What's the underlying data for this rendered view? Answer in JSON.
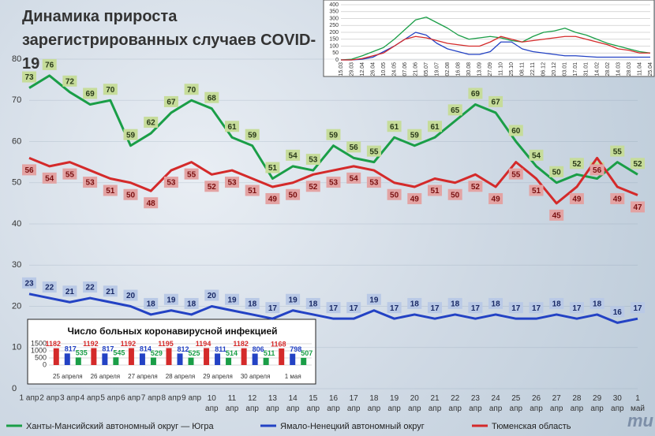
{
  "chart_data": [
    {
      "type": "line",
      "title": "Динамика прироста зарегистрированных случаев COVID-19",
      "categories": [
        "1 апр",
        "2 апр",
        "3 апр",
        "4 апр",
        "5 апр",
        "6 апр",
        "7 апр",
        "8 апр",
        "9 апр",
        "10 апр",
        "11 апр",
        "12 апр",
        "13 апр",
        "14 апр",
        "15 апр",
        "16 апр",
        "17 апр",
        "18 апр",
        "19 апр",
        "20 апр",
        "21 апр",
        "22 апр",
        "23 апр",
        "24 апр",
        "25 апр",
        "26 апр",
        "27 апр",
        "28 апр",
        "29 апр",
        "30 апр",
        "1 май"
      ],
      "series": [
        {
          "name": "Ханты-Мансийский автономный округ — Югра",
          "color": "#1a9e47",
          "values": [
            73,
            76,
            72,
            69,
            70,
            59,
            62,
            67,
            70,
            68,
            61,
            59,
            51,
            54,
            53,
            59,
            56,
            55,
            61,
            59,
            61,
            65,
            69,
            67,
            60,
            54,
            50,
            52,
            51,
            55,
            52
          ]
        },
        {
          "name": "Ямало-Ненецкий автономный округ",
          "color": "#2342c4",
          "values": [
            23,
            22,
            21,
            22,
            21,
            20,
            18,
            19,
            18,
            20,
            19,
            18,
            17,
            19,
            18,
            17,
            17,
            19,
            17,
            18,
            17,
            18,
            17,
            18,
            17,
            17,
            18,
            17,
            18,
            16,
            17
          ]
        },
        {
          "name": "Тюменская область",
          "color": "#d42a2a",
          "values": [
            56,
            54,
            55,
            53,
            51,
            50,
            48,
            53,
            55,
            52,
            53,
            51,
            49,
            50,
            52,
            53,
            54,
            53,
            50,
            49,
            51,
            50,
            52,
            49,
            55,
            51,
            45,
            49,
            56,
            49,
            47
          ]
        }
      ],
      "ylim": [
        0,
        80
      ],
      "yticks": [
        0,
        10,
        20,
        30,
        40,
        50,
        60,
        70,
        80
      ],
      "grid": true,
      "legend": "bottom"
    },
    {
      "type": "line",
      "categories": [
        "15.03",
        "29.03",
        "12.04",
        "26.04",
        "10.05",
        "24.05",
        "07.06",
        "21.06",
        "05.07",
        "19.07",
        "02.08",
        "16.08",
        "30.08",
        "13.09",
        "27.09",
        "11.10",
        "25.10",
        "08.11",
        "22.11",
        "06.12",
        "20.12",
        "03.01",
        "17.01",
        "31.01",
        "14.02",
        "28.02",
        "14.03",
        "28.03",
        "11.04",
        "25.04"
      ],
      "series": [
        {
          "color": "#1a9e47",
          "values": [
            0,
            5,
            30,
            60,
            90,
            150,
            220,
            290,
            310,
            270,
            230,
            180,
            150,
            160,
            170,
            160,
            140,
            130,
            170,
            200,
            210,
            230,
            200,
            180,
            150,
            120,
            100,
            80,
            60,
            50
          ]
        },
        {
          "color": "#2342c4",
          "values": [
            0,
            0,
            5,
            20,
            60,
            100,
            150,
            200,
            180,
            120,
            80,
            60,
            40,
            40,
            60,
            130,
            130,
            80,
            60,
            50,
            40,
            30,
            30,
            25,
            20,
            20,
            20,
            20,
            20,
            20
          ]
        },
        {
          "color": "#d42a2a",
          "values": [
            0,
            0,
            10,
            30,
            50,
            100,
            150,
            170,
            160,
            140,
            120,
            110,
            100,
            100,
            130,
            170,
            150,
            130,
            140,
            150,
            160,
            170,
            170,
            150,
            130,
            110,
            80,
            70,
            50,
            50
          ]
        }
      ],
      "ylim": [
        0,
        400
      ],
      "yticks": [
        0,
        50,
        100,
        150,
        200,
        250,
        300,
        350,
        400
      ],
      "grid": true
    },
    {
      "type": "bar",
      "title": "Число больных коронавирусной инфекцией",
      "categories": [
        "25 апреля",
        "26 апреля",
        "27 апреля",
        "28 апреля",
        "29 апреля",
        "30 апреля",
        "1 мая"
      ],
      "series": [
        {
          "color": "#d42a2a",
          "values": [
            1182,
            1192,
            1192,
            1195,
            1194,
            1182,
            1168
          ]
        },
        {
          "color": "#2342c4",
          "values": [
            817,
            817,
            814,
            812,
            811,
            806,
            798
          ]
        },
        {
          "color": "#1a9e47",
          "values": [
            535,
            545,
            529,
            525,
            514,
            511,
            507
          ]
        }
      ],
      "ylim": [
        0,
        1500
      ],
      "yticks": [
        0,
        500,
        1000,
        1500
      ],
      "grid": true
    }
  ]
}
